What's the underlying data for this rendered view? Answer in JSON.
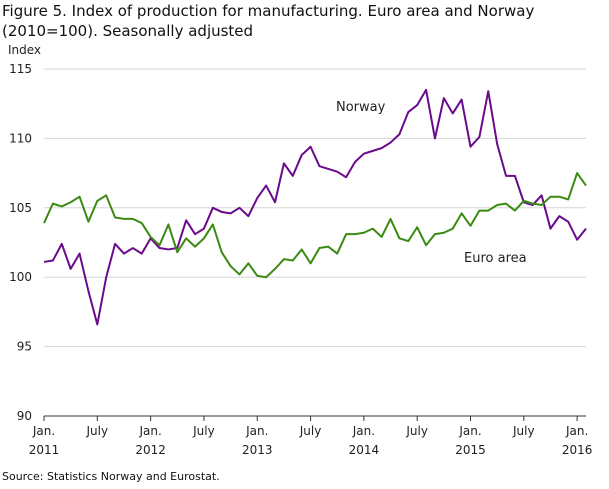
{
  "figure": {
    "title": "Figure 5. Index of production for manufacturing. Euro area and Norway (2010=100). Seasonally adjusted",
    "source": "Source: Statistics Norway and Eurostat."
  },
  "chart_data": {
    "type": "line",
    "title": "Figure 5. Index of production for manufacturing. Euro area and Norway (2010=100). Seasonally adjusted",
    "ylabel": "Index",
    "xlabel": "",
    "ylim": [
      90,
      115
    ],
    "yticks": [
      90,
      95,
      100,
      105,
      110,
      115
    ],
    "grid": "horizontal",
    "x_tick_labels": [
      {
        "line1": "Jan.",
        "line2": "2011",
        "month": 0
      },
      {
        "line1": "July",
        "line2": "",
        "month": 6
      },
      {
        "line1": "Jan.",
        "line2": "2012",
        "month": 12
      },
      {
        "line1": "July",
        "line2": "",
        "month": 18
      },
      {
        "line1": "Jan.",
        "line2": "2013",
        "month": 24
      },
      {
        "line1": "July",
        "line2": "",
        "month": 30
      },
      {
        "line1": "Jan.",
        "line2": "2014",
        "month": 36
      },
      {
        "line1": "July",
        "line2": "",
        "month": 42
      },
      {
        "line1": "Jan.",
        "line2": "2015",
        "month": 48
      },
      {
        "line1": "July",
        "line2": "",
        "month": 54
      },
      {
        "line1": "Jan.",
        "line2": "2016",
        "month": 60
      }
    ],
    "x": [
      "2011-01",
      "2011-02",
      "2011-03",
      "2011-04",
      "2011-05",
      "2011-06",
      "2011-07",
      "2011-08",
      "2011-09",
      "2011-10",
      "2011-11",
      "2011-12",
      "2012-01",
      "2012-02",
      "2012-03",
      "2012-04",
      "2012-05",
      "2012-06",
      "2012-07",
      "2012-08",
      "2012-09",
      "2012-10",
      "2012-11",
      "2012-12",
      "2013-01",
      "2013-02",
      "2013-03",
      "2013-04",
      "2013-05",
      "2013-06",
      "2013-07",
      "2013-08",
      "2013-09",
      "2013-10",
      "2013-11",
      "2013-12",
      "2014-01",
      "2014-02",
      "2014-03",
      "2014-04",
      "2014-05",
      "2014-06",
      "2014-07",
      "2014-08",
      "2014-09",
      "2014-10",
      "2014-11",
      "2014-12",
      "2015-01",
      "2015-02",
      "2015-03",
      "2015-04",
      "2015-05",
      "2015-06",
      "2015-07",
      "2015-08",
      "2015-09",
      "2015-10",
      "2015-11",
      "2015-12",
      "2016-01",
      "2016-02"
    ],
    "series": [
      {
        "name": "Norway",
        "color": "#6a0a8c",
        "values": [
          101.1,
          101.2,
          102.4,
          100.6,
          101.7,
          99.0,
          96.6,
          100.0,
          102.4,
          101.7,
          102.1,
          101.7,
          102.8,
          102.1,
          102.0,
          102.1,
          104.1,
          103.1,
          103.5,
          105.0,
          104.7,
          104.6,
          105.0,
          104.4,
          105.7,
          106.6,
          105.4,
          108.2,
          107.3,
          108.8,
          109.4,
          108.0,
          107.8,
          107.6,
          107.2,
          108.3,
          108.9,
          109.1,
          109.3,
          109.7,
          110.3,
          111.9,
          112.4,
          113.5,
          110.0,
          112.9,
          111.8,
          112.8,
          109.4,
          110.1,
          113.4,
          109.6,
          107.3,
          107.3,
          105.4,
          105.2,
          105.9,
          103.5,
          104.4,
          104.0,
          102.7,
          103.5
        ]
      },
      {
        "name": "Euro area",
        "color": "#3b8a12",
        "values": [
          103.9,
          105.3,
          105.1,
          105.4,
          105.8,
          104.0,
          105.5,
          105.9,
          104.3,
          104.2,
          104.2,
          103.9,
          102.9,
          102.3,
          103.8,
          101.8,
          102.8,
          102.2,
          102.8,
          103.8,
          101.8,
          100.8,
          100.2,
          101.0,
          100.1,
          100.0,
          100.6,
          101.3,
          101.2,
          102.0,
          101.0,
          102.1,
          102.2,
          101.7,
          103.1,
          103.1,
          103.2,
          103.5,
          102.9,
          104.2,
          102.8,
          102.6,
          103.6,
          102.3,
          103.1,
          103.2,
          103.5,
          104.6,
          103.7,
          104.8,
          104.8,
          105.2,
          105.3,
          104.8,
          105.5,
          105.3,
          105.2,
          105.8,
          105.8,
          105.6,
          107.5,
          106.6
        ]
      }
    ],
    "series_labels": [
      "Norway",
      "Euro area"
    ]
  }
}
